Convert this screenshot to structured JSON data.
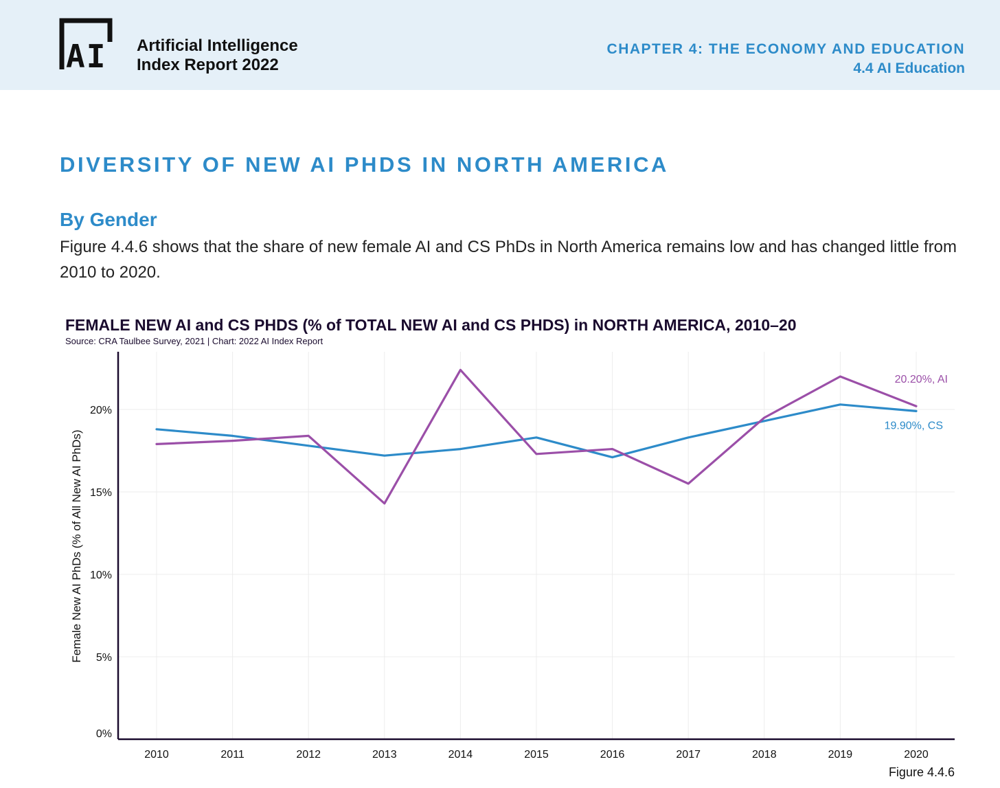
{
  "header": {
    "logo_text": "AI",
    "brand_line1": "Artificial Intelligence",
    "brand_line2": "Index Report 2022",
    "chapter": "CHAPTER 4: THE ECONOMY AND EDUCATION",
    "section": "4.4 AI Education"
  },
  "page": {
    "title": "DIVERSITY OF NEW AI PHDS IN NORTH AMERICA",
    "subhead": "By Gender",
    "body": "Figure 4.4.6 shows that the share of new female AI and CS PhDs in North America remains low and has changed little from 2010 to 2020.",
    "figure_label": "Figure 4.4.6"
  },
  "colors": {
    "accent": "#2d8bc9",
    "ai_series": "#9b4fa8",
    "cs_series": "#2d8bc9",
    "grid": "#ececec",
    "axis": "#1a0b2e"
  },
  "chart_data": {
    "type": "line",
    "title": "FEMALE NEW AI and CS PHDS (% of TOTAL NEW AI and CS PHDS) in NORTH AMERICA, 2010–20",
    "source": "Source: CRA Taulbee Survey, 2021 | Chart: 2022 AI Index Report",
    "xlabel": "",
    "ylabel": "Female New AI PhDs (% of All New AI PhDs)",
    "ylim": [
      0,
      23.5
    ],
    "yticks": [
      0,
      5,
      10,
      15,
      20
    ],
    "ytick_labels": [
      "0%",
      "5%",
      "10%",
      "15%",
      "20%"
    ],
    "categories": [
      "2010",
      "2011",
      "2012",
      "2013",
      "2014",
      "2015",
      "2016",
      "2017",
      "2018",
      "2019",
      "2020"
    ],
    "series": [
      {
        "name": "AI",
        "color": "#9b4fa8",
        "values": [
          17.9,
          18.1,
          18.4,
          14.3,
          22.4,
          17.3,
          17.6,
          15.5,
          19.5,
          22.0,
          20.2
        ],
        "end_label": "20.20%, AI"
      },
      {
        "name": "CS",
        "color": "#2d8bc9",
        "values": [
          18.8,
          18.4,
          17.8,
          17.2,
          17.6,
          18.3,
          17.1,
          18.3,
          19.3,
          20.3,
          19.9
        ],
        "end_label": "19.90%, CS"
      }
    ],
    "grid": true
  }
}
